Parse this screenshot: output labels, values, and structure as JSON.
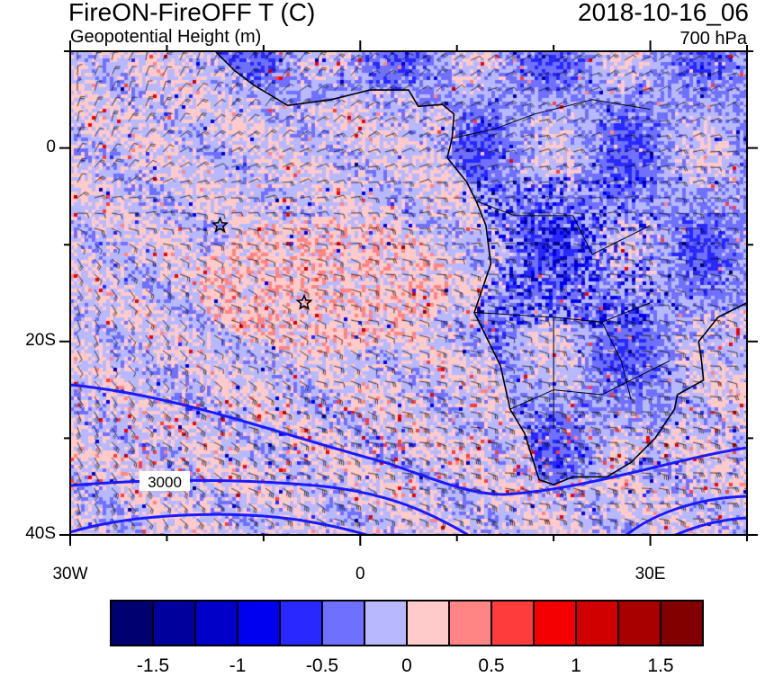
{
  "header": {
    "title": "FireON-FireOFF T (C)",
    "subtitle": "Geopotential Height (m)",
    "datetime": "2018-10-16_06",
    "level": "700 hPa"
  },
  "map": {
    "lon_range": [
      -30,
      40
    ],
    "lat_range": [
      -40,
      10
    ],
    "x_ticks": [
      {
        "lon": -30,
        "label": "30W"
      },
      {
        "lon": 0,
        "label": "0"
      },
      {
        "lon": 30,
        "label": "30E"
      }
    ],
    "y_ticks": [
      {
        "lat": 0,
        "label": "0"
      },
      {
        "lat": -20,
        "label": "20S"
      },
      {
        "lat": -40,
        "label": "40S"
      }
    ],
    "contour_label": "3000",
    "contour_color": "#1a1aff",
    "markers": [
      {
        "type": "star",
        "lon": -14.5,
        "lat": -8
      },
      {
        "type": "star",
        "lon": -5.8,
        "lat": -16
      }
    ]
  },
  "colorbar": {
    "colors": [
      "#000070",
      "#00009c",
      "#0000c8",
      "#0000f0",
      "#2828ff",
      "#7070ff",
      "#b8b8ff",
      "#ffcaca",
      "#ff8484",
      "#ff3c3c",
      "#f50000",
      "#d00000",
      "#a80000",
      "#820000"
    ],
    "labels": [
      {
        "v": -1.5,
        "label": "-1.5"
      },
      {
        "v": -1,
        "label": "-1"
      },
      {
        "v": -0.5,
        "label": "-0.5"
      },
      {
        "v": 0,
        "label": "0"
      },
      {
        "v": 0.5,
        "label": "0.5"
      },
      {
        "v": 1,
        "label": "1"
      },
      {
        "v": 1.5,
        "label": "1.5"
      }
    ],
    "levels": [
      -1.5,
      -1.25,
      -1,
      -0.75,
      -0.5,
      -0.25,
      0,
      0.25,
      0.5,
      0.75,
      1,
      1.25,
      1.5
    ]
  }
}
